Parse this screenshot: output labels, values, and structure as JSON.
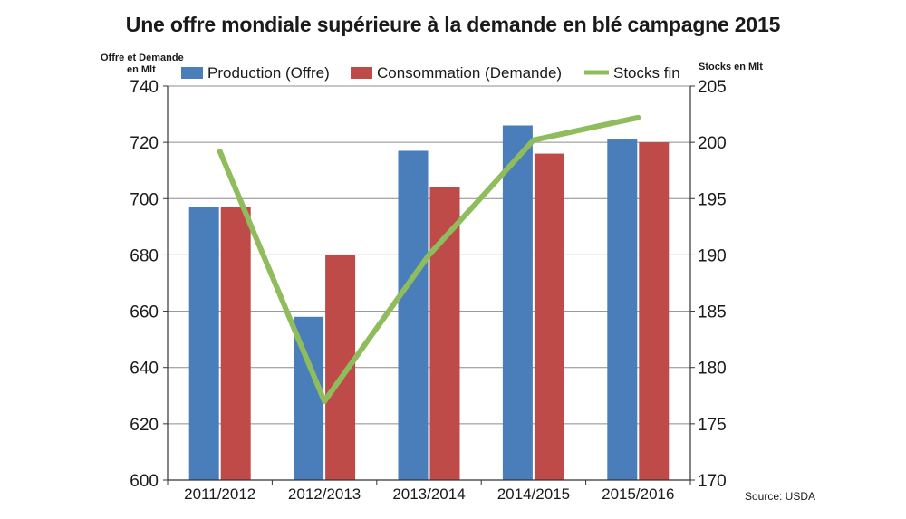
{
  "chart_data": {
    "type": "bar",
    "title": "Une offre mondiale supérieure à la demande en blé campagne 2015",
    "y_left_label_line1": "Offre et Demande",
    "y_left_label_line2": "en Mlt",
    "y_right_label": "Stocks en Mlt",
    "source": "Source: USDA",
    "categories": [
      "2011/2012",
      "2012/2013",
      "2013/2014",
      "2014/2015",
      "2015/2016"
    ],
    "y_left": {
      "min": 600,
      "max": 740,
      "ticks": [
        600,
        620,
        640,
        660,
        680,
        700,
        720,
        740
      ]
    },
    "y_right": {
      "min": 170,
      "max": 205,
      "ticks": [
        170,
        175,
        180,
        185,
        190,
        195,
        200,
        205
      ]
    },
    "grid": true,
    "legend_position": "top",
    "series": [
      {
        "name": "Production (Offre)",
        "kind": "bar",
        "axis": "left",
        "color": "#4a7ebb",
        "values": [
          697,
          658,
          717,
          726,
          721
        ]
      },
      {
        "name": "Consommation (Demande)",
        "kind": "bar",
        "axis": "left",
        "color": "#be4b48",
        "values": [
          697,
          680,
          704,
          716,
          720
        ]
      },
      {
        "name": "Stocks fin",
        "kind": "line",
        "axis": "right",
        "color": "#8fbc5c",
        "values": [
          199.2,
          177,
          190,
          200.2,
          202.2
        ]
      }
    ]
  }
}
